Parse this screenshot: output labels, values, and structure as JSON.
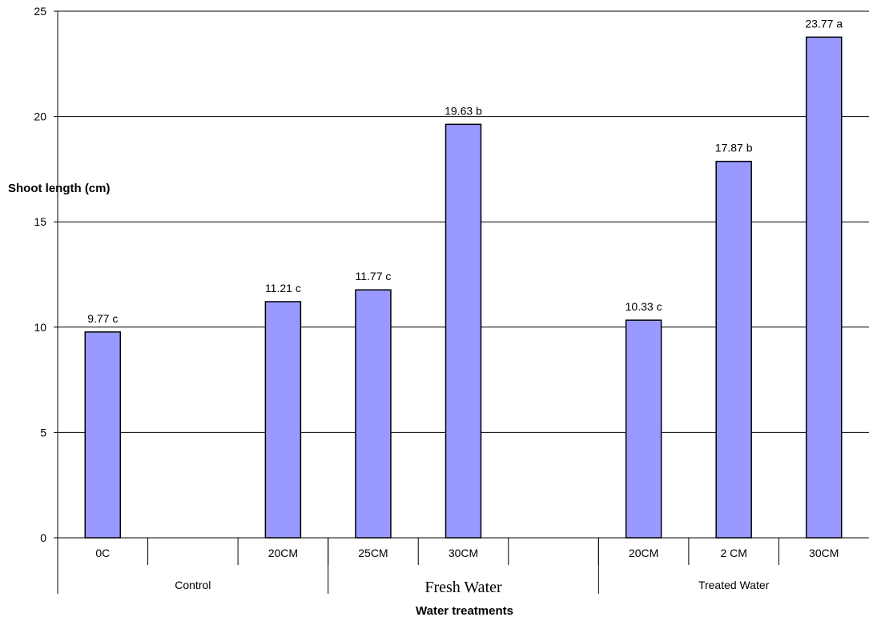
{
  "chart_data": {
    "type": "bar",
    "xlabel": "Water treatments",
    "ylabel": "Shoot  length (cm)",
    "ylim": [
      0,
      25
    ],
    "yticks": [
      0,
      5,
      10,
      15,
      20,
      25
    ],
    "grid": true,
    "legend": "none",
    "colors": {
      "bar_fill": "#9999ff",
      "bar_stroke": "#000000",
      "grid": "#000000"
    },
    "categories": [
      "0C",
      "",
      "20CM",
      "25CM",
      "30CM",
      "",
      "20CM",
      "2  CM",
      "30CM"
    ],
    "values": [
      9.77,
      null,
      11.21,
      11.77,
      19.63,
      null,
      10.33,
      17.87,
      23.77
    ],
    "data_labels": [
      "9.77 c",
      "",
      "11.21 c",
      "11.77 c",
      "19.63 b",
      "",
      "10.33 c",
      "17.87 b",
      "23.77 a"
    ],
    "groups": [
      {
        "label": "Control",
        "span": [
          0,
          2
        ]
      },
      {
        "label": "Fresh Water",
        "span": [
          3,
          5
        ]
      },
      {
        "label": "Treated Water",
        "span": [
          6,
          8
        ]
      }
    ]
  }
}
